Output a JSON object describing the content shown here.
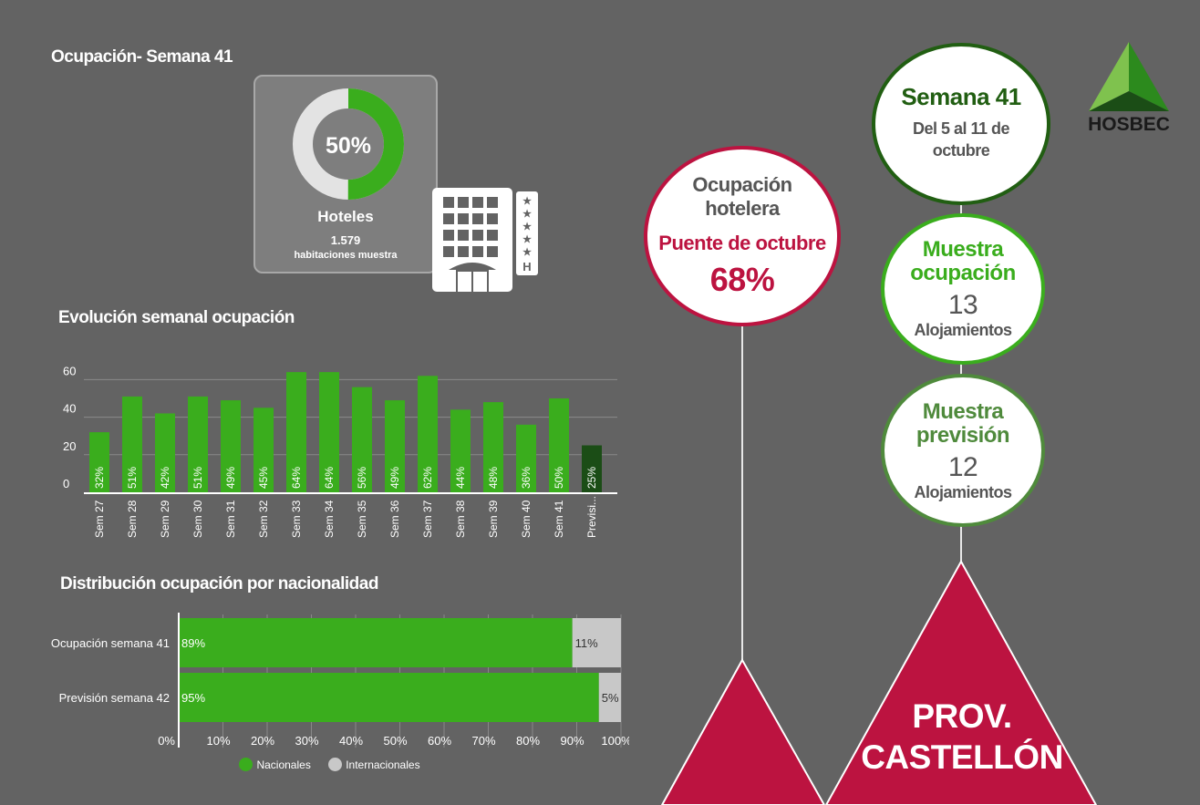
{
  "header": {
    "title": "Ocupación- Semana 41",
    "logo_text": "HOSBEC"
  },
  "hotel_card": {
    "percent_label": "50%",
    "percent_value": 50,
    "name": "Hoteles",
    "rooms": "1.579",
    "rooms_label": "habitaciones muestra"
  },
  "sections": {
    "weekly_title": "Evolución semanal ocupación",
    "nationality_title": "Distribución ocupación por nacionalidad"
  },
  "bridge_circle": {
    "line1": "Ocupación",
    "line2": "hotelera",
    "subtitle": "Puente de octubre",
    "value": "68%"
  },
  "week_circle": {
    "title": "Semana 41",
    "line1": "Del 5 al 11 de",
    "line2": "octubre"
  },
  "sample_occupation": {
    "line1": "Muestra",
    "line2": "ocupación",
    "count": "13",
    "unit": "Alojamientos"
  },
  "sample_forecast": {
    "line1": "Muestra",
    "line2": "previsión",
    "count": "12",
    "unit": "Alojamientos"
  },
  "province": {
    "line1": "PROV.",
    "line2": "CASTELLÓN"
  },
  "colors": {
    "background": "#636363",
    "green": "#3aad1d",
    "dark_green": "#1b4d16",
    "grey_bar": "#c8c8c8",
    "crimson": "#bc1340",
    "week_green": "#215e12",
    "sample_green": "#3aad1d",
    "forecast_green": "#4f8a3c"
  },
  "chart_data": [
    {
      "type": "bar",
      "title": "Evolución semanal ocupación",
      "categories": [
        "Sem 27",
        "Sem 28",
        "Sem 29",
        "Sem 30",
        "Sem 31",
        "Sem 32",
        "Sem 33",
        "Sem 34",
        "Sem 35",
        "Sem 36",
        "Sem 37",
        "Sem 38",
        "Sem 39",
        "Sem 40",
        "Sem 41",
        "Previsi..."
      ],
      "values": [
        32,
        51,
        42,
        51,
        49,
        45,
        64,
        64,
        56,
        49,
        62,
        44,
        48,
        36,
        50,
        25
      ],
      "labels": [
        "32%",
        "51%",
        "42%",
        "51%",
        "49%",
        "45%",
        "64%",
        "64%",
        "56%",
        "49%",
        "62%",
        "44%",
        "48%",
        "36%",
        "50%",
        "25%"
      ],
      "highlight_last": true,
      "yticks": [
        0,
        20,
        40,
        60
      ],
      "ylim": [
        0,
        65
      ],
      "xlabel": "",
      "ylabel": ""
    },
    {
      "type": "bar",
      "orientation": "horizontal-stacked",
      "title": "Distribución ocupación por nacionalidad",
      "categories": [
        "Ocupación semana 41",
        "Previsión semana 42"
      ],
      "series": [
        {
          "name": "Nacionales",
          "values": [
            89,
            95
          ],
          "labels": [
            "89%",
            "95%"
          ]
        },
        {
          "name": "Internacionales",
          "values": [
            11,
            5
          ],
          "labels": [
            "11%",
            "5%"
          ]
        }
      ],
      "xticks": [
        "0%",
        "10%",
        "20%",
        "30%",
        "40%",
        "50%",
        "60%",
        "70%",
        "80%",
        "90%",
        "100%"
      ],
      "xlim": [
        0,
        100
      ],
      "legend": "bottom"
    }
  ]
}
